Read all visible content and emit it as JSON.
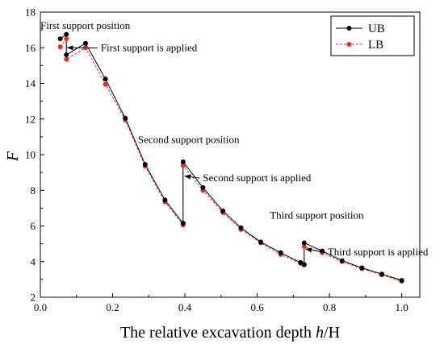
{
  "chart_data": {
    "type": "line",
    "xlabel_parts": [
      "The relative excavation depth ",
      "h",
      "/H"
    ],
    "ylabel": "F",
    "xlim": [
      0.0,
      1.05
    ],
    "ylim": [
      2,
      18
    ],
    "xticks": [
      "0.0",
      "0.2",
      "0.4",
      "0.6",
      "0.8",
      "1.0"
    ],
    "yticks": [
      "2",
      "4",
      "6",
      "8",
      "10",
      "12",
      "14",
      "16",
      "18"
    ],
    "grid": false,
    "legend_position": "top-right",
    "series": [
      {
        "name": "UB",
        "color": "#000000",
        "line_style": "solid",
        "x": [
          0.055,
          0.072,
          0.072,
          0.125,
          0.18,
          0.235,
          0.29,
          0.345,
          0.395,
          0.395,
          0.45,
          0.505,
          0.555,
          0.61,
          0.665,
          0.72,
          0.73,
          0.73,
          0.78,
          0.835,
          0.89,
          0.945,
          1.0
        ],
        "y": [
          16.5,
          16.75,
          15.6,
          16.25,
          14.25,
          12.05,
          9.45,
          7.45,
          6.15,
          9.6,
          8.15,
          6.85,
          5.9,
          5.1,
          4.5,
          3.95,
          3.85,
          5.05,
          4.6,
          4.05,
          3.65,
          3.3,
          2.95
        ]
      },
      {
        "name": "LB",
        "color": "#e0302a",
        "line_style": "dashed",
        "x": [
          0.055,
          0.072,
          0.072,
          0.125,
          0.18,
          0.235,
          0.29,
          0.345,
          0.395,
          0.395,
          0.45,
          0.505,
          0.555,
          0.61,
          0.665,
          0.72,
          0.73,
          0.73,
          0.78,
          0.835,
          0.89,
          0.945,
          1.0
        ],
        "y": [
          16.05,
          16.5,
          15.35,
          16.0,
          13.95,
          11.95,
          9.35,
          7.35,
          6.05,
          9.4,
          8.0,
          6.75,
          5.8,
          5.05,
          4.4,
          3.9,
          3.8,
          4.85,
          4.5,
          4.0,
          3.6,
          3.25,
          2.9
        ]
      }
    ],
    "annotations": [
      {
        "text": "First support position",
        "x": 0.0,
        "y": 17.05
      },
      {
        "text": "First support is applied",
        "x": 0.167,
        "y": 15.8,
        "arrow_to": [
          0.075,
          16.0
        ]
      },
      {
        "text": "Second support position",
        "x": 0.27,
        "y": 10.65
      },
      {
        "text": "Second support is applied",
        "x": 0.45,
        "y": 8.5,
        "arrow_to": [
          0.4,
          8.8
        ]
      },
      {
        "text": "Third support position",
        "x": 0.635,
        "y": 6.4
      },
      {
        "text": "Third support is applied",
        "x": 0.795,
        "y": 4.35,
        "arrow_to": [
          0.735,
          4.7
        ]
      }
    ]
  }
}
